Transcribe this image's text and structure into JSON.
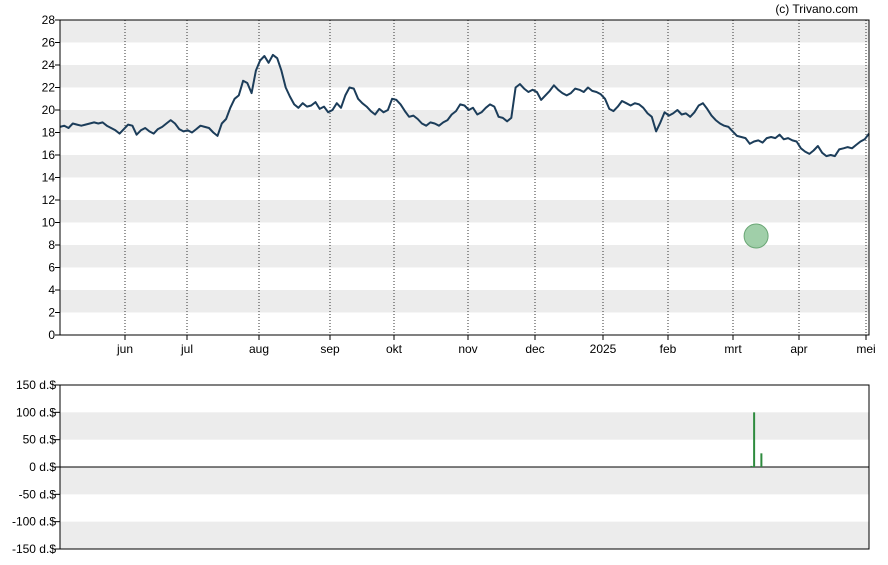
{
  "credit": "(c) Trivano.com",
  "chart_data": [
    {
      "type": "line",
      "ylim": [
        0,
        28
      ],
      "y_ticks": [
        "0",
        "2",
        "4",
        "6",
        "8",
        "10",
        "12",
        "14",
        "16",
        "18",
        "20",
        "22",
        "24",
        "26",
        "28"
      ],
      "x_ticks": [
        "jun",
        "jul",
        "aug",
        "sep",
        "okt",
        "nov",
        "dec",
        "2025",
        "feb",
        "mrt",
        "apr",
        "mei"
      ],
      "grid": "horizontal bands, dotted vertical month lines",
      "line_color": "#1c3d5a",
      "series": [
        {
          "values": [
            18.5,
            18.6,
            18.4,
            18.8,
            18.7,
            18.6,
            18.7,
            18.8,
            18.9,
            18.8,
            18.9,
            18.6,
            18.4,
            18.2,
            17.9,
            18.3,
            18.7,
            18.6,
            17.8,
            18.2,
            18.4,
            18.1,
            17.9,
            18.3,
            18.5,
            18.8,
            19.1,
            18.8,
            18.3,
            18.1,
            18.2,
            18.0,
            18.3,
            18.6,
            18.5,
            18.4,
            18.0,
            17.7,
            18.8,
            19.2,
            20.2,
            21.0,
            21.3,
            22.6,
            22.4,
            21.5,
            23.5,
            24.4,
            24.8,
            24.2,
            24.9,
            24.6,
            23.5,
            22.0,
            21.2,
            20.5,
            20.2,
            20.6,
            20.3,
            20.4,
            20.7,
            20.1,
            20.3,
            19.8,
            20.0,
            20.6,
            20.2,
            21.3,
            22.0,
            21.9,
            21.0,
            20.6,
            20.3,
            19.9,
            19.6,
            20.1,
            19.8,
            20.0,
            21.0,
            20.9,
            20.5,
            19.9,
            19.4,
            19.5,
            19.2,
            18.8,
            18.6,
            18.9,
            18.8,
            18.6,
            18.9,
            19.1,
            19.6,
            19.9,
            20.5,
            20.4,
            20.0,
            20.2,
            19.6,
            19.8,
            20.2,
            20.5,
            20.3,
            19.4,
            19.3,
            19.0,
            19.3,
            22.0,
            22.3,
            21.9,
            21.6,
            21.8,
            21.6,
            20.9,
            21.3,
            21.7,
            22.2,
            21.8,
            21.5,
            21.3,
            21.5,
            21.9,
            21.8,
            21.6,
            22.0,
            21.7,
            21.6,
            21.4,
            21.0,
            20.1,
            19.9,
            20.3,
            20.8,
            20.6,
            20.4,
            20.6,
            20.5,
            20.2,
            19.7,
            19.4,
            18.1,
            18.9,
            19.8,
            19.5,
            19.7,
            20.0,
            19.6,
            19.7,
            19.4,
            19.8,
            20.4,
            20.6,
            20.1,
            19.5,
            19.1,
            18.8,
            18.6,
            18.5,
            18.1,
            17.7,
            17.6,
            17.5,
            17.0,
            17.2,
            17.3,
            17.1,
            17.5,
            17.6,
            17.5,
            17.8,
            17.4,
            17.5,
            17.3,
            17.2,
            16.6,
            16.3,
            16.1,
            16.4,
            16.8,
            16.2,
            15.9,
            16.0,
            15.9,
            16.5,
            16.6,
            16.7,
            16.6,
            16.9,
            17.2,
            17.4,
            17.9
          ]
        }
      ],
      "markers": [
        {
          "kind": "dividend",
          "month_pos": 10.35,
          "value": 8.8,
          "color": "#8fc79a"
        }
      ]
    },
    {
      "type": "bar",
      "ylim": [
        -150,
        150
      ],
      "y_ticks": [
        "150 d.$",
        "100 d.$",
        "50 d.$",
        "0 d.$",
        "-50 d.$",
        "-100 d.$",
        "-150 d.$"
      ],
      "bar_color": "#2e8b3e",
      "bars": [
        {
          "month_pos": 10.28,
          "value": 2
        },
        {
          "month_pos": 10.32,
          "value": 100
        },
        {
          "month_pos": 10.43,
          "value": 25
        }
      ]
    }
  ]
}
